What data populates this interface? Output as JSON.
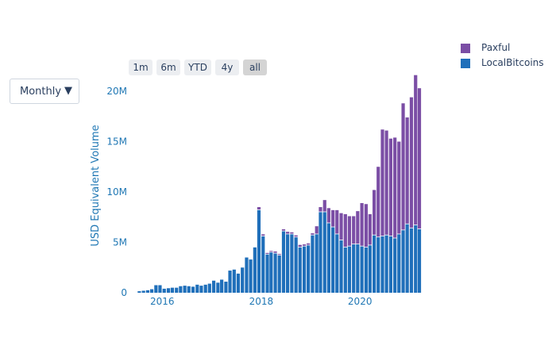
{
  "dropdown": {
    "selected": "Monthly"
  },
  "range_buttons": [
    "1m",
    "6m",
    "YTD",
    "4y",
    "all"
  ],
  "range_active": "all",
  "colors": {
    "LocalBitcoins": "#1f6fba",
    "Paxful": "#7b4ea5",
    "axis_text": "#1f77b4"
  },
  "chart_data": {
    "type": "bar",
    "stacked": true,
    "xlabel": "",
    "ylabel": "USD Equivalent Volume",
    "ylim": [
      0,
      20000000
    ],
    "yticks": [
      0,
      5000000,
      10000000,
      15000000,
      20000000
    ],
    "ytick_labels": [
      "0",
      "5M",
      "10M",
      "15M",
      "20M"
    ],
    "xticks": [
      "2016-01",
      "2018-01",
      "2020-01"
    ],
    "xtick_labels": [
      "2016",
      "2018",
      "2020"
    ],
    "xrange": [
      "2015-05-15",
      "2021-03-15"
    ],
    "grid": false,
    "legend_position": "top-right",
    "categories": [
      "2015-07",
      "2015-08",
      "2015-09",
      "2015-10",
      "2015-11",
      "2015-12",
      "2016-01",
      "2016-02",
      "2016-03",
      "2016-04",
      "2016-05",
      "2016-06",
      "2016-07",
      "2016-08",
      "2016-09",
      "2016-10",
      "2016-11",
      "2016-12",
      "2017-01",
      "2017-02",
      "2017-03",
      "2017-04",
      "2017-05",
      "2017-06",
      "2017-07",
      "2017-08",
      "2017-09",
      "2017-10",
      "2017-11",
      "2017-12",
      "2018-01",
      "2018-02",
      "2018-03",
      "2018-04",
      "2018-05",
      "2018-06",
      "2018-07",
      "2018-08",
      "2018-09",
      "2018-10",
      "2018-11",
      "2018-12",
      "2019-01",
      "2019-02",
      "2019-03",
      "2019-04",
      "2019-05",
      "2019-06",
      "2019-07",
      "2019-08",
      "2019-09",
      "2019-10",
      "2019-11",
      "2019-12",
      "2020-01",
      "2020-02",
      "2020-03",
      "2020-04",
      "2020-05",
      "2020-06",
      "2020-07",
      "2020-08",
      "2020-09",
      "2020-10",
      "2020-11",
      "2020-12",
      "2021-01",
      "2021-02",
      "2021-03"
    ],
    "series": [
      {
        "name": "LocalBitcoins",
        "values": [
          150000,
          200000,
          250000,
          350000,
          750000,
          750000,
          400000,
          450000,
          500000,
          500000,
          650000,
          700000,
          650000,
          600000,
          800000,
          700000,
          800000,
          900000,
          1200000,
          1000000,
          1300000,
          1100000,
          2200000,
          2300000,
          1900000,
          2500000,
          3500000,
          3300000,
          4500000,
          8200000,
          5600000,
          3800000,
          4000000,
          3900000,
          3700000,
          6100000,
          5800000,
          5800000,
          5500000,
          4500000,
          4600000,
          4700000,
          5700000,
          5800000,
          8000000,
          8000000,
          6900000,
          6500000,
          5800000,
          5200000,
          4500000,
          4600000,
          4800000,
          4800000,
          4600000,
          4500000,
          4700000,
          5700000,
          5500000,
          5600000,
          5700000,
          5600000,
          5400000,
          5800000,
          6200000,
          6800000,
          6400000,
          6700000,
          6300000
        ]
      },
      {
        "name": "Paxful",
        "values": [
          0,
          0,
          0,
          0,
          0,
          0,
          0,
          0,
          0,
          0,
          0,
          0,
          0,
          0,
          0,
          0,
          0,
          0,
          0,
          0,
          0,
          0,
          0,
          0,
          0,
          0,
          0,
          0,
          0,
          300000,
          200000,
          150000,
          150000,
          200000,
          150000,
          200000,
          250000,
          200000,
          200000,
          250000,
          200000,
          200000,
          200000,
          800000,
          500000,
          1200000,
          1500000,
          1700000,
          2400000,
          2700000,
          3300000,
          3000000,
          2800000,
          3300000,
          4300000,
          4300000,
          3100000,
          4500000,
          7000000,
          10600000,
          10400000,
          9700000,
          10000000,
          9200000,
          12600000,
          10600000,
          13000000,
          14900000,
          14000000
        ]
      }
    ]
  }
}
